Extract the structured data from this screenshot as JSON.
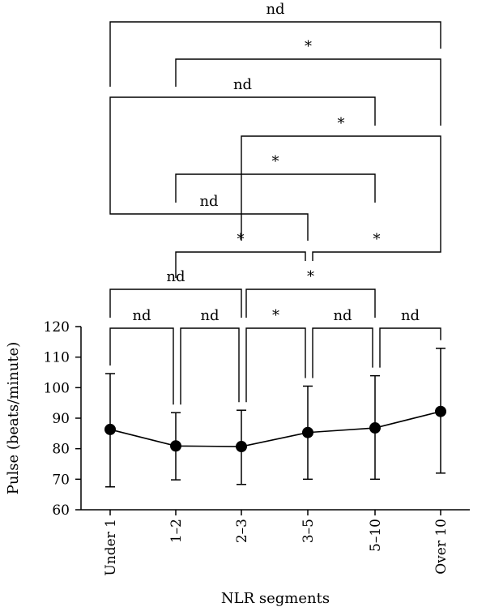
{
  "chart_data": {
    "type": "line",
    "xlabel": "NLR segments",
    "ylabel": "Pulse (beats/minute)",
    "categories": [
      "Under 1",
      "1–2",
      "2–3",
      "3–5",
      "5–10",
      "Over 10"
    ],
    "ylim": [
      60,
      120
    ],
    "yticks": [
      60,
      70,
      80,
      90,
      100,
      110,
      120
    ],
    "series": [
      {
        "values": [
          86.3,
          80.9,
          80.7,
          85.3,
          86.8,
          92.2
        ],
        "error_low": [
          67.5,
          69.8,
          68.3,
          70.0,
          70.0,
          72.0
        ],
        "error_high": [
          104.6,
          91.8,
          92.6,
          100.5,
          103.9,
          112.9
        ]
      }
    ],
    "comparisons": [
      {
        "from": 0,
        "to": 1,
        "label": "nd"
      },
      {
        "from": 1,
        "to": 2,
        "label": "nd"
      },
      {
        "from": 2,
        "to": 3,
        "label": "*"
      },
      {
        "from": 3,
        "to": 4,
        "label": "nd"
      },
      {
        "from": 4,
        "to": 5,
        "label": "nd"
      },
      {
        "from": 0,
        "to": 2,
        "label": "nd"
      },
      {
        "from": 2,
        "to": 4,
        "label": "*"
      },
      {
        "from": 1,
        "to": 3,
        "label": "*"
      },
      {
        "from": 3,
        "to": 5,
        "label": "*"
      },
      {
        "from": 0,
        "to": 3,
        "label": "nd"
      },
      {
        "from": 1,
        "to": 4,
        "label": "*"
      },
      {
        "from": 2,
        "to": 5,
        "label": "*"
      },
      {
        "from": 0,
        "to": 4,
        "label": "nd"
      },
      {
        "from": 1,
        "to": 5,
        "label": "*"
      },
      {
        "from": 0,
        "to": 5,
        "label": "nd"
      }
    ]
  }
}
